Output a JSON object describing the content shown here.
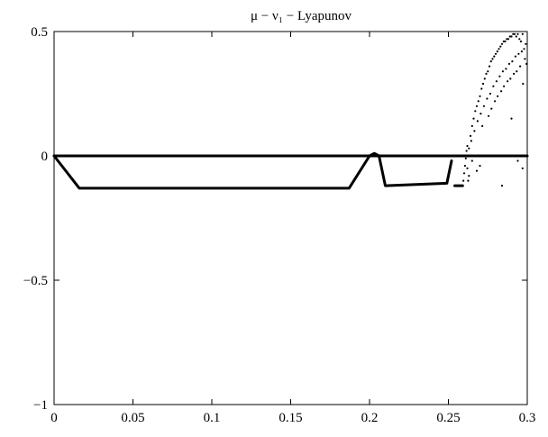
{
  "chart_data": {
    "type": "scatter",
    "title": "μ − ν₁ − Lyapunov",
    "xlabel": "",
    "ylabel": "",
    "xlim": [
      0,
      0.3
    ],
    "ylim": [
      -1,
      0.5
    ],
    "xticks": [
      0,
      0.05,
      0.1,
      0.15,
      0.2,
      0.25,
      0.3
    ],
    "xtick_labels": [
      "0",
      "0.05",
      "0.1",
      "0.15",
      "0.2",
      "0.25",
      "0.3"
    ],
    "yticks": [
      0.5,
      0,
      -0.5,
      -1
    ],
    "ytick_labels": [
      "0.5",
      "0",
      "−0.5",
      "−1"
    ],
    "grid": false,
    "series": [
      {
        "style": "thick-line",
        "x": [
          0,
          0.3
        ],
        "y": [
          0,
          0
        ]
      },
      {
        "style": "thick-line",
        "x": [
          0,
          0.016,
          0.187,
          0.2,
          0.203,
          0.206,
          0.21,
          0.249,
          0.252
        ],
        "y": [
          0,
          -0.13,
          -0.13,
          0,
          0.01,
          0,
          -0.12,
          -0.11,
          -0.02
        ]
      },
      {
        "style": "thick-line",
        "x": [
          0.254,
          0.259
        ],
        "y": [
          -0.12,
          -0.12
        ]
      },
      {
        "style": "dots",
        "x": [
          0.2595,
          0.26,
          0.2605,
          0.261,
          0.2615,
          0.262,
          0.2625,
          0.263,
          0.264,
          0.265,
          0.266,
          0.267,
          0.268,
          0.269,
          0.27,
          0.271,
          0.272,
          0.273,
          0.274,
          0.275,
          0.276,
          0.277,
          0.278,
          0.279,
          0.28,
          0.281,
          0.282,
          0.283,
          0.284,
          0.285,
          0.286,
          0.287,
          0.288,
          0.289,
          0.29,
          0.291,
          0.292,
          0.293,
          0.294,
          0.295,
          0.296,
          0.297,
          0.298,
          0.299,
          0.2645,
          0.2665,
          0.2685,
          0.2705,
          0.2725,
          0.2745,
          0.2765,
          0.2785,
          0.2805,
          0.2825,
          0.2845,
          0.2865,
          0.2885,
          0.2905,
          0.2925,
          0.2945,
          0.2965,
          0.2985,
          0.2715,
          0.2755,
          0.2795,
          0.2835,
          0.2875,
          0.2915,
          0.2955,
          0.2995,
          0.2773,
          0.2812,
          0.2852,
          0.2893,
          0.2933,
          0.2973,
          0.262,
          0.263,
          0.2635,
          0.265,
          0.268,
          0.27,
          0.284,
          0.29,
          0.294,
          0.297
        ],
        "y": [
          -0.1,
          -0.07,
          -0.04,
          -0.01,
          0.02,
          0.04,
          -0.1,
          0.03,
          0.08,
          0.12,
          0.15,
          0.18,
          0.2,
          0.22,
          0.24,
          0.27,
          0.29,
          0.31,
          0.33,
          0.34,
          0.36,
          0.38,
          0.39,
          0.4,
          0.41,
          0.42,
          0.43,
          0.44,
          0.45,
          0.46,
          0.46,
          0.47,
          0.47,
          0.48,
          0.48,
          0.49,
          0.49,
          0.48,
          0.49,
          0.47,
          0.46,
          0.49,
          0.43,
          0.45,
          0.06,
          0.1,
          0.14,
          0.17,
          0.2,
          0.23,
          0.25,
          0.28,
          0.3,
          0.32,
          0.34,
          0.35,
          0.37,
          0.38,
          0.4,
          0.41,
          0.42,
          0.39,
          0.12,
          0.16,
          0.22,
          0.26,
          0.3,
          0.33,
          0.36,
          0.37,
          0.19,
          0.24,
          0.28,
          0.31,
          0.34,
          0.29,
          -0.05,
          -0.08,
          0.0,
          -0.02,
          -0.06,
          -0.04,
          -0.12,
          0.15,
          -0.02,
          -0.05
        ]
      }
    ]
  }
}
